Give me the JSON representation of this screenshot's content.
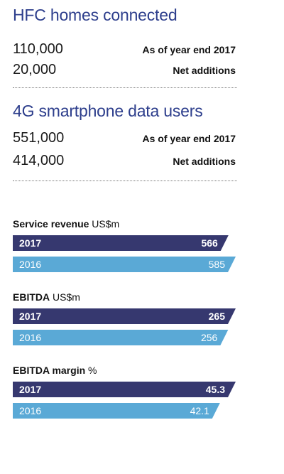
{
  "kpis": [
    {
      "title": "HFC homes connected",
      "rows": [
        {
          "value": "110,000",
          "label": "As of year end 2017"
        },
        {
          "value": "20,000",
          "label": "Net additions"
        }
      ]
    },
    {
      "title": "4G smartphone data users",
      "rows": [
        {
          "value": "551,000",
          "label": "As of year end 2017"
        },
        {
          "value": "414,000",
          "label": "Net additions"
        }
      ]
    }
  ],
  "colors": {
    "dark": "#36386f",
    "light": "#5aa9d6",
    "title": "#2d3e8c"
  },
  "chart_data": [
    {
      "type": "bar",
      "title": "Service revenue",
      "unit": "US$m",
      "categories": [
        "2017",
        "2016"
      ],
      "values": [
        566,
        585
      ],
      "labels": [
        "566",
        "585"
      ]
    },
    {
      "type": "bar",
      "title": "EBITDA",
      "unit": "US$m",
      "categories": [
        "2017",
        "2016"
      ],
      "values": [
        265,
        256
      ],
      "labels": [
        "265",
        "256"
      ]
    },
    {
      "type": "bar",
      "title": "EBITDA margin",
      "unit": "%",
      "categories": [
        "2017",
        "2016"
      ],
      "values": [
        45.3,
        42.1
      ],
      "labels": [
        "45.3",
        "42.1"
      ]
    }
  ]
}
